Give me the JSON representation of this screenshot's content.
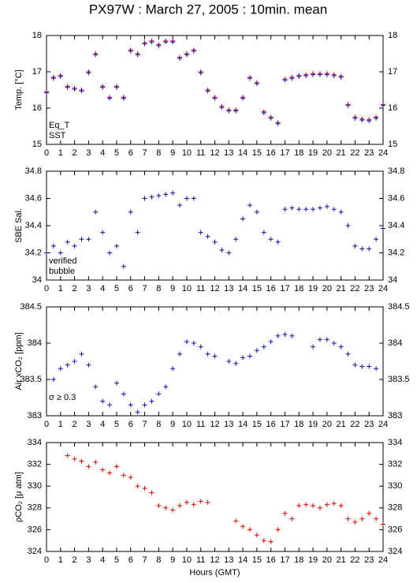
{
  "title": "PX97W : March 27, 2005 : 10min. mean",
  "chart_data": [
    {
      "type": "scatter",
      "ylabel": "Temp. [°C]",
      "xlim": [
        0,
        24
      ],
      "ylim": [
        15,
        18
      ],
      "xticks": [
        0,
        1,
        2,
        3,
        4,
        5,
        6,
        7,
        8,
        9,
        10,
        11,
        12,
        13,
        14,
        15,
        16,
        17,
        18,
        19,
        20,
        21,
        22,
        23,
        24
      ],
      "yticks": [
        15,
        16,
        17,
        18
      ],
      "x": [
        0,
        0.5,
        1,
        1.5,
        2,
        2.5,
        3,
        3.5,
        4,
        4.5,
        5,
        5.5,
        6,
        6.5,
        7,
        7.5,
        8,
        8.5,
        9,
        9.5,
        10,
        10.5,
        11,
        11.5,
        12,
        12.5,
        13,
        13.5,
        14,
        14.5,
        15,
        15.5,
        16,
        16.5,
        17,
        17.5,
        18,
        18.5,
        19,
        19.5,
        20,
        20.5,
        21,
        21.5,
        22,
        22.5,
        23,
        23.5,
        24
      ],
      "series": [
        {
          "name": "Eq_T",
          "color": "#e00000",
          "values": [
            16.45,
            16.85,
            16.9,
            16.6,
            16.55,
            16.5,
            17.0,
            17.5,
            16.6,
            16.3,
            16.6,
            16.3,
            17.6,
            17.5,
            17.8,
            17.85,
            17.75,
            17.85,
            17.85,
            17.4,
            17.5,
            17.6,
            17.0,
            16.5,
            16.3,
            16.05,
            15.95,
            15.95,
            16.3,
            16.85,
            16.7,
            15.9,
            15.75,
            15.6,
            16.8,
            16.85,
            16.9,
            16.92,
            16.95,
            16.95,
            16.95,
            16.92,
            16.88,
            16.1,
            15.75,
            15.7,
            15.68,
            15.75,
            16.1
          ]
        },
        {
          "name": "SST",
          "color": "#1010c0",
          "values": [
            16.42,
            16.82,
            16.87,
            16.57,
            16.52,
            16.47,
            16.97,
            17.47,
            16.57,
            16.27,
            16.57,
            16.27,
            17.57,
            17.47,
            17.77,
            17.82,
            17.72,
            17.82,
            17.82,
            17.37,
            17.47,
            17.57,
            16.97,
            16.47,
            16.27,
            16.02,
            15.92,
            15.92,
            16.27,
            16.82,
            16.67,
            15.87,
            15.72,
            15.57,
            16.77,
            16.82,
            16.87,
            16.89,
            16.92,
            16.92,
            16.92,
            16.89,
            16.85,
            16.07,
            15.72,
            15.67,
            15.65,
            15.72,
            16.07
          ]
        }
      ]
    },
    {
      "type": "scatter",
      "ylabel": "SBE Sal.",
      "xlim": [
        0,
        24
      ],
      "ylim": [
        34,
        34.8
      ],
      "xticks": [
        0,
        1,
        2,
        3,
        4,
        5,
        6,
        7,
        8,
        9,
        10,
        11,
        12,
        13,
        14,
        15,
        16,
        17,
        18,
        19,
        20,
        21,
        22,
        23,
        24
      ],
      "yticks": [
        34,
        34.2,
        34.4,
        34.6,
        34.8
      ],
      "x": [
        0,
        0.5,
        1,
        1.5,
        2,
        2.5,
        3,
        3.5,
        4,
        4.5,
        5,
        5.5,
        6,
        6.5,
        7,
        7.5,
        8,
        8.5,
        9,
        9.5,
        10,
        10.5,
        11,
        11.5,
        12,
        12.5,
        13,
        13.5,
        14,
        14.5,
        15,
        15.5,
        16,
        16.5,
        17,
        17.5,
        18,
        18.5,
        19,
        19.5,
        20,
        20.5,
        21,
        21.5,
        22,
        22.5,
        23,
        23.5,
        24
      ],
      "series": [
        {
          "name": "verified",
          "color": "#1010a0",
          "values": [
            34.2,
            34.25,
            34.2,
            34.28,
            34.25,
            34.3,
            34.3,
            34.5,
            34.35,
            34.2,
            34.25,
            34.1,
            34.5,
            34.35,
            34.6,
            34.61,
            34.62,
            34.63,
            34.64,
            34.55,
            34.6,
            34.6,
            34.35,
            34.32,
            34.28,
            34.22,
            34.2,
            34.3,
            34.45,
            34.55,
            34.5,
            34.35,
            34.3,
            34.28,
            34.52,
            34.53,
            34.52,
            34.52,
            34.52,
            34.53,
            34.54,
            34.52,
            34.5,
            34.4,
            34.25,
            34.23,
            34.23,
            34.3,
            34.38
          ]
        },
        {
          "name": "bubble",
          "color": "#d000d0",
          "values": [
            null,
            null,
            null,
            null,
            null,
            null,
            null,
            null,
            null,
            null,
            null,
            null,
            null,
            null,
            null,
            null,
            null,
            null,
            null,
            null,
            null,
            null,
            null,
            null,
            null,
            null,
            null,
            null,
            null,
            null,
            null,
            null,
            null,
            null,
            null,
            null,
            null,
            null,
            null,
            null,
            null,
            null,
            null,
            null,
            null,
            null,
            null,
            null,
            null
          ]
        }
      ]
    },
    {
      "type": "scatter",
      "ylabel": "Air xCO₂ [ppm]",
      "annotation": "σ ≥ 0.3",
      "annotation_color": "#d000d0",
      "xlim": [
        0,
        24
      ],
      "ylim": [
        383,
        384.5
      ],
      "xticks": [
        0,
        1,
        2,
        3,
        4,
        5,
        6,
        7,
        8,
        9,
        10,
        11,
        12,
        13,
        14,
        15,
        16,
        17,
        18,
        19,
        20,
        21,
        22,
        23,
        24
      ],
      "yticks": [
        383,
        383.5,
        384,
        384.5
      ],
      "x": [
        0,
        0.5,
        1,
        1.5,
        2,
        2.5,
        3,
        3.5,
        4,
        4.5,
        5,
        5.5,
        6,
        6.5,
        7,
        7.5,
        8,
        8.5,
        9,
        9.5,
        10,
        10.5,
        11,
        11.5,
        12,
        12.5,
        13,
        13.5,
        14,
        14.5,
        15,
        15.5,
        16,
        16.5,
        17,
        17.5,
        18,
        18.5,
        19,
        19.5,
        20,
        20.5,
        21,
        21.5,
        22,
        22.5,
        23,
        23.5,
        24
      ],
      "series": [
        {
          "name": "Air xCO₂",
          "color": "#1010c0",
          "values": [
            null,
            383.5,
            383.65,
            383.7,
            383.75,
            383.85,
            383.7,
            383.4,
            383.2,
            383.15,
            383.45,
            383.3,
            383.15,
            383.05,
            383.15,
            383.2,
            383.3,
            383.4,
            383.65,
            383.85,
            384.02,
            384.0,
            383.95,
            383.85,
            383.82,
            null,
            383.75,
            383.72,
            383.8,
            383.82,
            383.9,
            383.95,
            384.02,
            384.1,
            384.12,
            384.1,
            null,
            null,
            383.95,
            384.05,
            384.05,
            384.0,
            383.95,
            383.85,
            383.7,
            383.68,
            383.68,
            383.65,
            null
          ]
        }
      ]
    },
    {
      "type": "scatter",
      "ylabel": "ρCO₂ [μ atm]",
      "xlabel": "Hours (GMT)",
      "xlim": [
        0,
        24
      ],
      "ylim": [
        324,
        334
      ],
      "xticks": [
        0,
        1,
        2,
        3,
        4,
        5,
        6,
        7,
        8,
        9,
        10,
        11,
        12,
        13,
        14,
        15,
        16,
        17,
        18,
        19,
        20,
        21,
        22,
        23,
        24
      ],
      "yticks": [
        324,
        326,
        328,
        330,
        332,
        334
      ],
      "x": [
        0,
        0.5,
        1,
        1.5,
        2,
        2.5,
        3,
        3.5,
        4,
        4.5,
        5,
        5.5,
        6,
        6.5,
        7,
        7.5,
        8,
        8.5,
        9,
        9.5,
        10,
        10.5,
        11,
        11.5,
        12,
        12.5,
        13,
        13.5,
        14,
        14.5,
        15,
        15.5,
        16,
        16.5,
        17,
        17.5,
        18,
        18.5,
        19,
        19.5,
        20,
        20.5,
        21,
        21.5,
        22,
        22.5,
        23,
        23.5,
        24
      ],
      "series": [
        {
          "name": "ρCO₂",
          "color": "#e00000",
          "values": [
            null,
            null,
            null,
            332.8,
            332.5,
            332.3,
            331.8,
            332.2,
            331.5,
            331.2,
            331.8,
            331.0,
            330.8,
            330.0,
            329.8,
            329.4,
            328.2,
            328.0,
            327.8,
            328.2,
            328.5,
            328.3,
            328.6,
            328.5,
            null,
            null,
            null,
            326.8,
            326.3,
            326.0,
            325.5,
            325.0,
            324.9,
            326.0,
            327.5,
            327.0,
            328.2,
            328.3,
            328.2,
            328.0,
            328.3,
            328.4,
            328.2,
            327.0,
            326.7,
            327.0,
            327.5,
            327.0,
            326.5
          ]
        }
      ]
    }
  ]
}
